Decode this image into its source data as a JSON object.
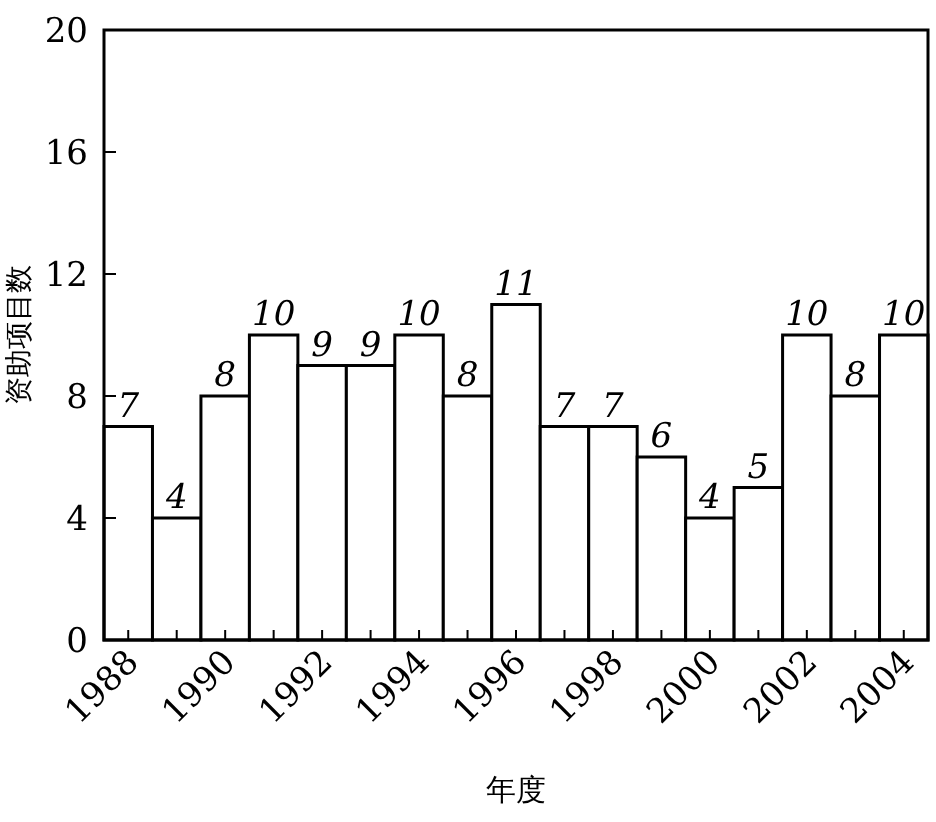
{
  "chart_data": {
    "type": "bar",
    "xlabel": "年度",
    "ylabel": "资助项目数",
    "categories": [
      "1988",
      null,
      "1990",
      null,
      "1992",
      null,
      "1994",
      null,
      "1996",
      null,
      "1998",
      null,
      "2000",
      null,
      "2002",
      null,
      "2004"
    ],
    "values": [
      7,
      4,
      8,
      10,
      9,
      9,
      10,
      8,
      11,
      7,
      7,
      6,
      4,
      5,
      10,
      8,
      10
    ],
    "color": "#ffffff",
    "ylim": [
      0,
      20
    ],
    "yticks": [
      0,
      4,
      8,
      12,
      16,
      20
    ],
    "data_labels": true
  }
}
